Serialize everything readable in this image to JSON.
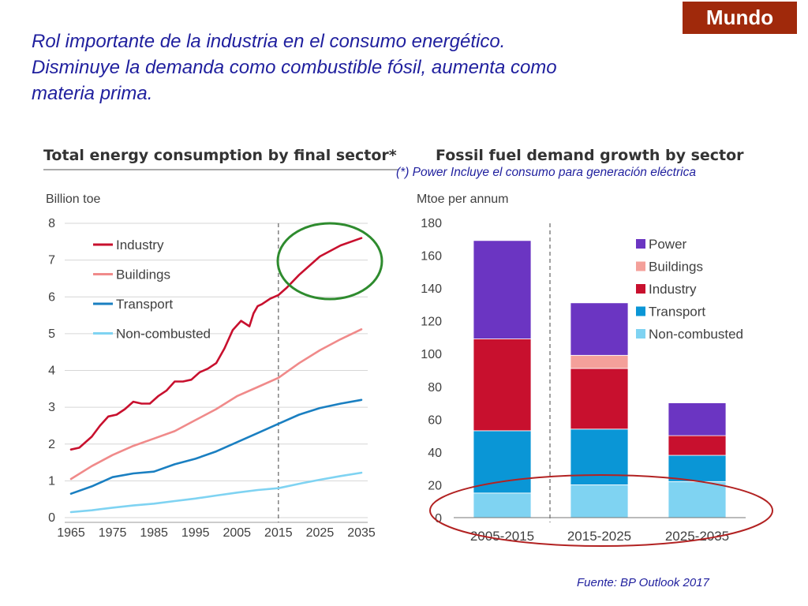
{
  "badge": "Mundo",
  "title_lines": [
    "Rol importante de la industria en el consumo energético.",
    "Disminuye la demanda como combustible fósil, aumenta como",
    "materia prima."
  ],
  "footnote": "(*) Power Incluye el consumo para generación eléctrica",
  "source": "Fuente: BP Outlook 2017",
  "colors": {
    "badge": "#a0290b",
    "text": "#1f1f9e",
    "highlight_green": "#2e8b2e",
    "highlight_red": "#b22222"
  },
  "chart_data": [
    {
      "type": "line",
      "title": "Total energy consumption by final sector*",
      "ylabel": "Billion toe",
      "ylim": [
        0,
        8
      ],
      "yticks": [
        "0",
        "1",
        "2",
        "3",
        "4",
        "5",
        "6",
        "7",
        "8"
      ],
      "xlim": [
        1965,
        2035
      ],
      "xticks": [
        "1965",
        "1975",
        "1985",
        "1995",
        "2005",
        "2015",
        "2025",
        "2035"
      ],
      "projection_start": 2015,
      "legend_position": "top-left",
      "series": [
        {
          "name": "Industry",
          "color": "#c8102e",
          "x": [
            1965,
            1967,
            1970,
            1972,
            1974,
            1976,
            1978,
            1980,
            1982,
            1984,
            1986,
            1988,
            1990,
            1992,
            1994,
            1996,
            1998,
            2000,
            2002,
            2004,
            2006,
            2008,
            2009,
            2010,
            2011,
            2013,
            2015,
            2017,
            2020,
            2025,
            2030,
            2035
          ],
          "y": [
            1.85,
            1.9,
            2.2,
            2.5,
            2.75,
            2.8,
            2.95,
            3.15,
            3.1,
            3.1,
            3.3,
            3.45,
            3.7,
            3.7,
            3.75,
            3.95,
            4.05,
            4.2,
            4.6,
            5.1,
            5.35,
            5.2,
            5.55,
            5.75,
            5.8,
            5.95,
            6.05,
            6.25,
            6.6,
            7.1,
            7.4,
            7.6
          ]
        },
        {
          "name": "Buildings",
          "color": "#f08a8a",
          "x": [
            1965,
            1970,
            1975,
            1980,
            1985,
            1990,
            1995,
            2000,
            2005,
            2010,
            2015,
            2020,
            2025,
            2030,
            2035
          ],
          "y": [
            1.05,
            1.4,
            1.7,
            1.95,
            2.15,
            2.35,
            2.65,
            2.95,
            3.3,
            3.55,
            3.8,
            4.2,
            4.55,
            4.85,
            5.12
          ]
        },
        {
          "name": "Transport",
          "color": "#1a7fc1",
          "x": [
            1965,
            1970,
            1975,
            1980,
            1985,
            1990,
            1995,
            2000,
            2005,
            2010,
            2015,
            2020,
            2025,
            2030,
            2035
          ],
          "y": [
            0.65,
            0.85,
            1.1,
            1.2,
            1.25,
            1.45,
            1.6,
            1.8,
            2.05,
            2.3,
            2.55,
            2.8,
            2.98,
            3.1,
            3.2
          ]
        },
        {
          "name": "Non-combusted",
          "color": "#7fd3f2",
          "x": [
            1965,
            1970,
            1975,
            1980,
            1985,
            1990,
            1995,
            2000,
            2005,
            2010,
            2015,
            2020,
            2025,
            2030,
            2035
          ],
          "y": [
            0.15,
            0.2,
            0.27,
            0.33,
            0.38,
            0.45,
            0.52,
            0.6,
            0.68,
            0.75,
            0.8,
            0.92,
            1.03,
            1.13,
            1.22
          ]
        }
      ]
    },
    {
      "type": "bar",
      "stacked": true,
      "title": "Fossil fuel demand growth by sector",
      "ylabel": "Mtoe per annum",
      "ylim": [
        0,
        180
      ],
      "yticks": [
        "0",
        "20",
        "40",
        "60",
        "80",
        "100",
        "120",
        "140",
        "160",
        "180"
      ],
      "categories": [
        "2005-2015",
        "2015-2025",
        "2025-2035"
      ],
      "legend_position": "top-right",
      "series": [
        {
          "name": "Non-combusted",
          "color": "#7fd3f2",
          "values": [
            15,
            20,
            22
          ]
        },
        {
          "name": "Transport",
          "color": "#0a96d6",
          "values": [
            38,
            34,
            16
          ]
        },
        {
          "name": "Industry",
          "color": "#c8102e",
          "values": [
            56,
            37,
            12
          ]
        },
        {
          "name": "Buildings",
          "color": "#f4a09a",
          "values": [
            0,
            8,
            0
          ]
        },
        {
          "name": "Power",
          "color": "#6b35c2",
          "values": [
            60,
            32,
            20
          ]
        }
      ],
      "legend_order": [
        "Power",
        "Buildings",
        "Industry",
        "Transport",
        "Non-combusted"
      ]
    }
  ]
}
